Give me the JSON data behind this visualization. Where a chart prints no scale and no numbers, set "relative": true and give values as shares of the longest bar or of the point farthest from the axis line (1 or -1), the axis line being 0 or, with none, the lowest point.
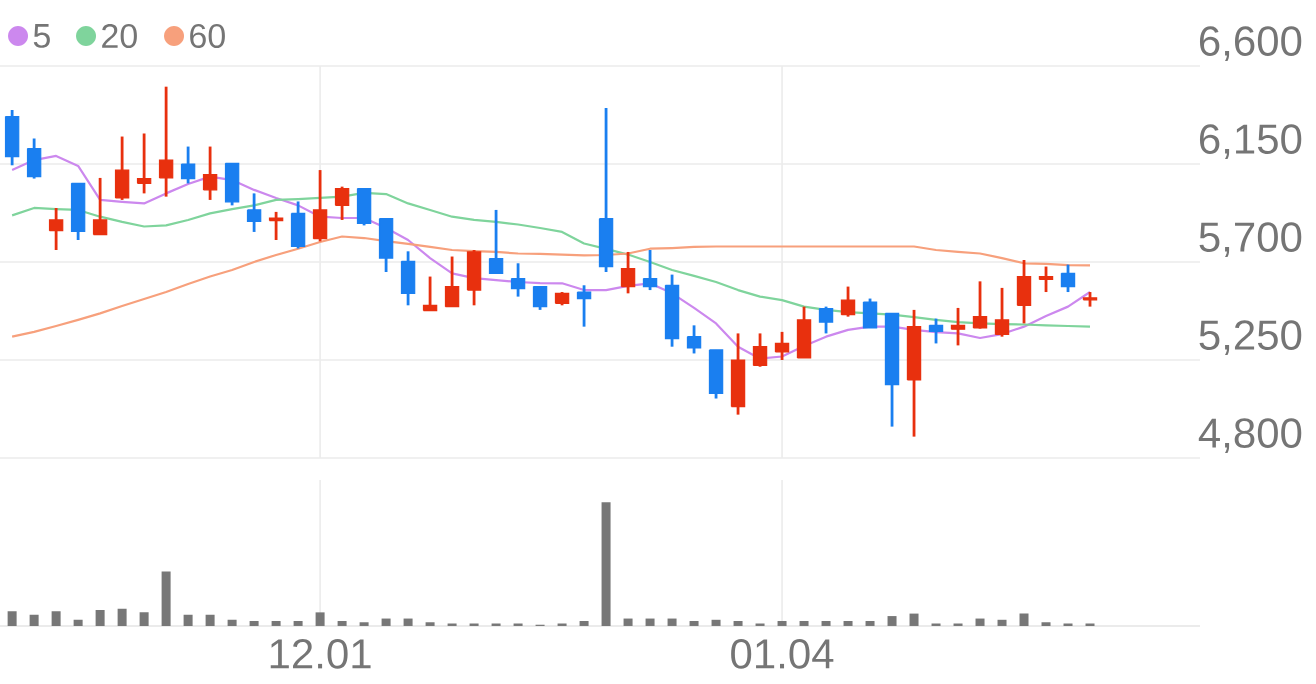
{
  "chart_data": [
    {
      "type": "candlestick",
      "legend": "top left",
      "grid": true,
      "tick_labels": "y",
      "categories": [
        null,
        null,
        null,
        null,
        null,
        null,
        null,
        null,
        null,
        null,
        null,
        null,
        null,
        null,
        "12.01",
        null,
        null,
        null,
        null,
        null,
        null,
        null,
        null,
        null,
        null,
        null,
        null,
        null,
        null,
        null,
        null,
        null,
        null,
        null,
        null,
        "01.04",
        null,
        null,
        null,
        null,
        null,
        null,
        null,
        null,
        null,
        null,
        null,
        null,
        null,
        null
      ],
      "ylim": [
        4800,
        6600
      ],
      "yticks": [
        {
          "value": 4800,
          "label": "4,800"
        },
        {
          "value": 5250,
          "label": "5,250"
        },
        {
          "value": 5700,
          "label": "5,700"
        },
        {
          "value": 6150,
          "label": "6,150"
        },
        {
          "value": 6600,
          "label": "6,600"
        }
      ],
      "ohlc": [
        [
          6368,
          6398,
          6144,
          6184
        ],
        [
          6221,
          6267,
          6083,
          6092
        ],
        [
          5844,
          5948,
          5755,
          5893
        ],
        [
          6061,
          6061,
          5801,
          5840
        ],
        [
          5826,
          6086,
          5826,
          5893
        ],
        [
          5994,
          6276,
          5985,
          6122
        ],
        [
          6061,
          6290,
          6015,
          6083
        ],
        [
          6086,
          6505,
          6000,
          6168
        ],
        [
          6150,
          6230,
          6061,
          6083
        ],
        [
          6031,
          6230,
          5985,
          6101
        ],
        [
          6153,
          6153,
          5960,
          5976
        ],
        [
          5939,
          6015,
          5838,
          5886
        ],
        [
          5890,
          5930,
          5801,
          5902
        ],
        [
          5923,
          5978,
          5762,
          5771
        ],
        [
          5807,
          6122,
          5795,
          5939
        ],
        [
          5960,
          6046,
          5893,
          6037
        ],
        [
          6037,
          6037,
          5868,
          5877
        ],
        [
          5899,
          5899,
          5654,
          5718
        ],
        [
          5703,
          5749,
          5501,
          5556
        ],
        [
          5477,
          5633,
          5477,
          5501
        ],
        [
          5495,
          5725,
          5495,
          5587
        ],
        [
          5571,
          5755,
          5501,
          5746
        ],
        [
          5716,
          5939,
          5648,
          5648
        ],
        [
          5624,
          5694,
          5541,
          5578
        ],
        [
          5587,
          5587,
          5480,
          5495
        ],
        [
          5510,
          5562,
          5501,
          5556
        ],
        [
          5562,
          5593,
          5403,
          5532
        ],
        [
          5899,
          6407,
          5654,
          5679
        ],
        [
          5587,
          5746,
          5556,
          5670
        ],
        [
          5624,
          5755,
          5571,
          5587
        ],
        [
          5593,
          5642,
          5311,
          5348
        ],
        [
          5357,
          5409,
          5280,
          5305
        ],
        [
          5296,
          5296,
          5073,
          5097
        ],
        [
          5036,
          5372,
          4999,
          5250
        ],
        [
          5225,
          5372,
          5219,
          5311
        ],
        [
          5287,
          5379,
          5250,
          5326
        ],
        [
          5259,
          5495,
          5259,
          5434
        ],
        [
          5486,
          5495,
          5372,
          5424
        ],
        [
          5458,
          5587,
          5449,
          5525
        ],
        [
          5516,
          5532,
          5397,
          5397
        ],
        [
          5464,
          5464,
          4944,
          5137
        ],
        [
          5158,
          5480,
          4898,
          5403
        ],
        [
          5409,
          5440,
          5326,
          5381
        ],
        [
          5391,
          5489,
          5317,
          5409
        ],
        [
          5397,
          5611,
          5394,
          5449
        ],
        [
          5367,
          5581,
          5357,
          5434
        ],
        [
          5501,
          5709,
          5418,
          5633
        ],
        [
          5620,
          5679,
          5562,
          5633
        ],
        [
          5648,
          5688,
          5562,
          5587
        ],
        [
          5526,
          5562,
          5495,
          5535
        ]
      ],
      "series": [
        {
          "type": "line",
          "name": "5",
          "color": "#cc88ee",
          "values": [
            6122,
            6168,
            6187,
            6141,
            5985,
            5976,
            5969,
            6015,
            6058,
            6092,
            6076,
            6031,
            5994,
            5960,
            5908,
            5902,
            5902,
            5856,
            5801,
            5718,
            5648,
            5626,
            5617,
            5608,
            5603,
            5602,
            5571,
            5571,
            5590,
            5602,
            5556,
            5489,
            5418,
            5311,
            5256,
            5266,
            5314,
            5357,
            5388,
            5403,
            5403,
            5388,
            5378,
            5372,
            5351,
            5369,
            5403,
            5452,
            5495,
            5562
          ]
        },
        {
          "type": "line",
          "name": "20",
          "color": "#7fd49c",
          "values": [
            5914,
            5948,
            5943,
            5939,
            5908,
            5884,
            5863,
            5868,
            5893,
            5923,
            5943,
            5960,
            5985,
            5989,
            5994,
            6000,
            6017,
            6012,
            5969,
            5939,
            5908,
            5893,
            5884,
            5872,
            5856,
            5838,
            5785,
            5760,
            5734,
            5700,
            5663,
            5636,
            5608,
            5571,
            5541,
            5525,
            5495,
            5480,
            5470,
            5464,
            5458,
            5447,
            5434,
            5424,
            5418,
            5415,
            5413,
            5409,
            5406,
            5403
          ]
        },
        {
          "type": "line",
          "name": "60",
          "color": "#f7a07c",
          "values": [
            5357,
            5379,
            5406,
            5434,
            5464,
            5498,
            5530,
            5562,
            5599,
            5633,
            5663,
            5700,
            5732,
            5761,
            5792,
            5817,
            5810,
            5796,
            5783,
            5769,
            5755,
            5750,
            5746,
            5739,
            5737,
            5734,
            5730,
            5732,
            5739,
            5761,
            5764,
            5769,
            5771,
            5771,
            5771,
            5771,
            5771,
            5771,
            5771,
            5771,
            5771,
            5771,
            5755,
            5746,
            5739,
            5718,
            5694,
            5691,
            5686,
            5684
          ]
        }
      ]
    },
    {
      "type": "bar",
      "relative": true,
      "grid": "x",
      "tick_labels": "x",
      "color": "#777777",
      "categories": [
        null,
        null,
        null,
        null,
        null,
        null,
        null,
        null,
        null,
        null,
        null,
        null,
        null,
        null,
        "12.01",
        null,
        null,
        null,
        null,
        null,
        null,
        null,
        null,
        null,
        null,
        null,
        null,
        null,
        null,
        null,
        null,
        null,
        null,
        null,
        null,
        "01.04",
        null,
        null,
        null,
        null,
        null,
        null,
        null,
        null,
        null,
        null,
        null,
        null,
        null,
        null
      ],
      "values": [
        0.12,
        0.09,
        0.12,
        0.05,
        0.13,
        0.14,
        0.11,
        0.44,
        0.09,
        0.09,
        0.05,
        0.04,
        0.04,
        0.04,
        0.11,
        0.04,
        0.03,
        0.06,
        0.06,
        0.03,
        0.02,
        0.02,
        0.02,
        0.02,
        0.01,
        0.02,
        0.04,
        1,
        0.06,
        0.06,
        0.06,
        0.04,
        0.05,
        0.04,
        0.02,
        0.04,
        0.04,
        0.04,
        0.04,
        0.04,
        0.08,
        0.1,
        0.02,
        0.02,
        0.06,
        0.05,
        0.1,
        0.03,
        0.02,
        0.02
      ]
    }
  ]
}
